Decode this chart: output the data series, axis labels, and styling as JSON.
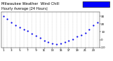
{
  "title": "Milwaukee Weather  Wind Chill",
  "subtitle": "Hourly Average (24 Hours)",
  "hours": [
    1,
    2,
    3,
    4,
    5,
    6,
    7,
    8,
    9,
    10,
    11,
    12,
    13,
    14,
    15,
    16,
    17,
    18,
    19,
    20,
    21,
    22,
    23,
    24
  ],
  "wind_chill": [
    30,
    26,
    22,
    18,
    16,
    13,
    11,
    8,
    5,
    2,
    -1,
    -3,
    -5,
    -6,
    -5,
    -3,
    -1,
    1,
    4,
    6,
    9,
    13,
    18,
    22
  ],
  "dot_color": "#0000ee",
  "dot_size": 2.5,
  "bg_color": "#ffffff",
  "grid_color": "#999999",
  "tick_color": "#000000",
  "legend_facecolor": "#0000ff",
  "legend_edgecolor": "#000000",
  "ylim": [
    -8,
    35
  ],
  "ytick_values": [
    30,
    20,
    10,
    0,
    -10
  ],
  "ytick_labels": [
    "30",
    "20",
    "10",
    "0",
    "-10"
  ],
  "xlim": [
    0.5,
    24.5
  ],
  "xtick_positions": [
    1,
    3,
    5,
    7,
    9,
    11,
    13,
    15,
    17,
    19,
    21,
    23
  ],
  "xtick_labels": [
    "1",
    "3",
    "5",
    "7",
    "9",
    "11",
    "13",
    "15",
    "17",
    "19",
    "21",
    "23"
  ],
  "title_fontsize": 3.8,
  "tick_fontsize": 3.0,
  "figwidth": 1.6,
  "figheight": 0.87,
  "dpi": 100
}
